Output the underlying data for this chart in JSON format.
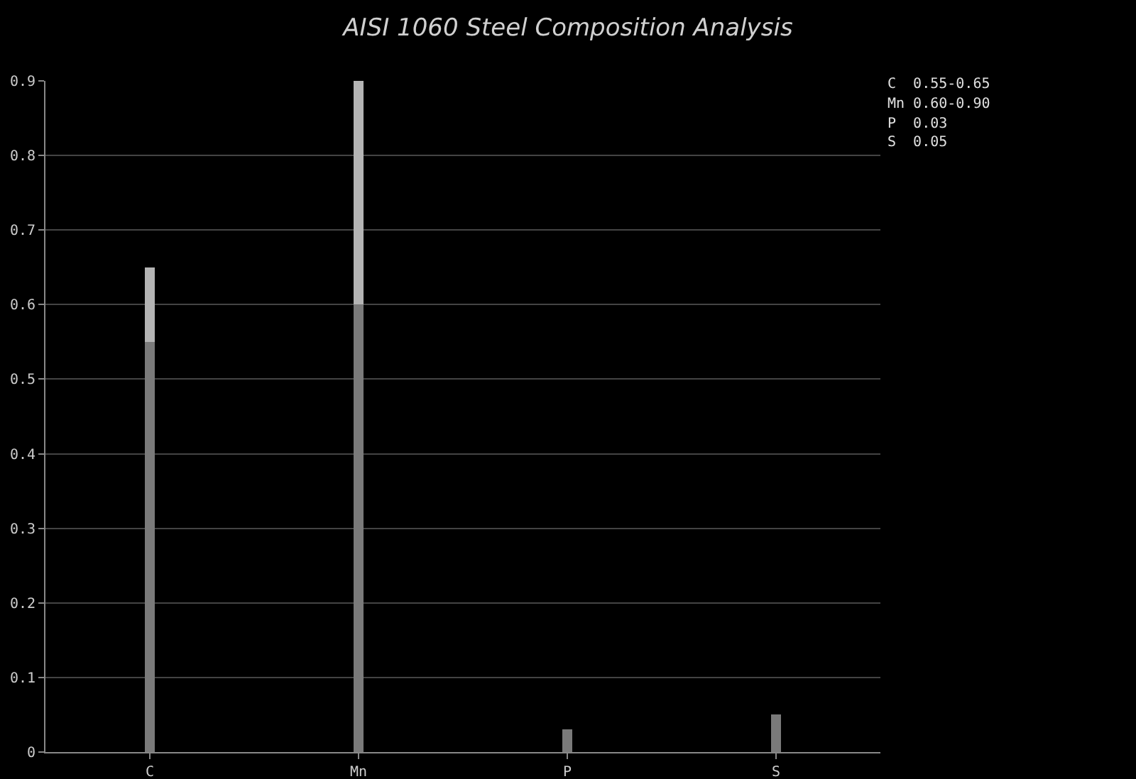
{
  "chart_data": {
    "type": "bar",
    "title": "AISI 1060 Steel Composition Analysis",
    "categories": [
      "C",
      "Mn",
      "P",
      "S"
    ],
    "stacked": true,
    "series": [
      {
        "color": "#7a7a7a",
        "values": [
          0.55,
          0.6,
          0.03,
          0.05
        ]
      },
      {
        "color": "#b4b4b4",
        "values": [
          0.1,
          0.3,
          null,
          null
        ]
      }
    ],
    "ylim": [
      0,
      0.9
    ],
    "yticks": [
      0,
      0.1,
      0.2,
      0.3,
      0.4,
      0.5,
      0.6,
      0.7,
      0.8,
      0.9
    ],
    "grid": "y",
    "annotations": [
      "C  0.55-0.65",
      "Mn 0.60-0.90",
      "P  0.03",
      "S  0.05"
    ]
  }
}
